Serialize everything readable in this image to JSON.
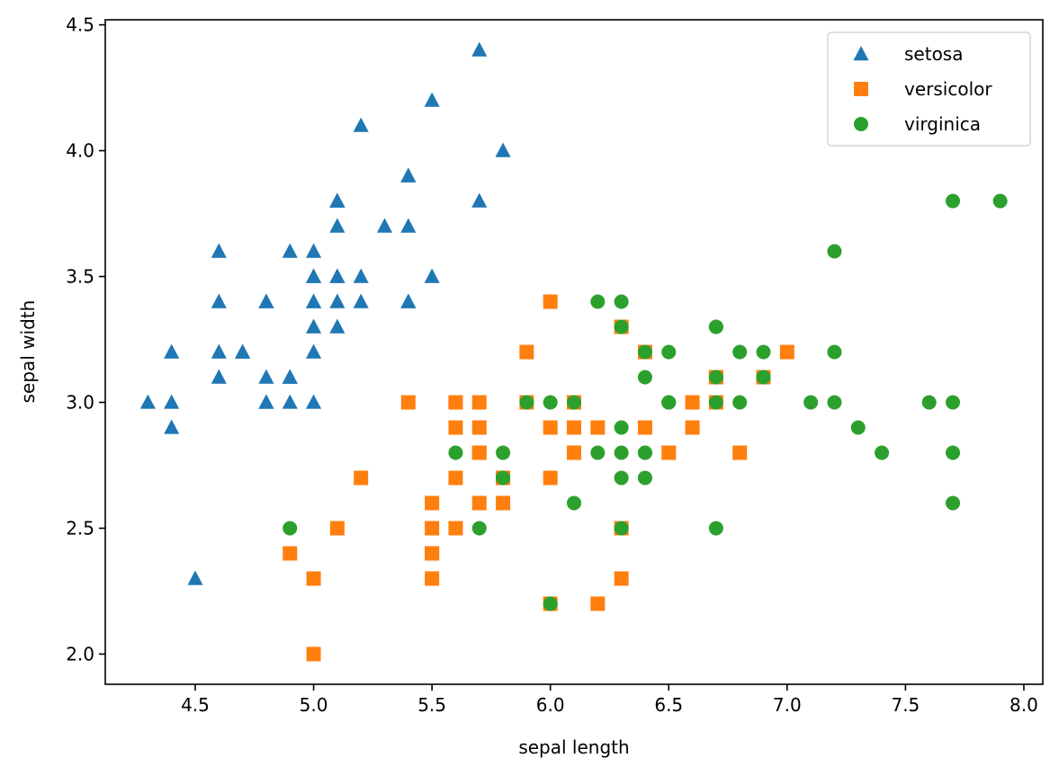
{
  "chart_data": {
    "type": "scatter",
    "title": "",
    "xlabel": "sepal length",
    "ylabel": "sepal width",
    "xlim": [
      4.12,
      8.08
    ],
    "ylim": [
      1.88,
      4.52
    ],
    "xticks": [
      "4.5",
      "5.0",
      "5.5",
      "6.0",
      "6.5",
      "7.0",
      "7.5",
      "8.0"
    ],
    "yticks": [
      "2.0",
      "2.5",
      "3.0",
      "3.5",
      "4.0",
      "4.5"
    ],
    "legend_position": "upper-right",
    "series": [
      {
        "name": "setosa",
        "marker": "triangle",
        "color": "#1f77b4",
        "points": [
          [
            5.1,
            3.5
          ],
          [
            4.9,
            3.0
          ],
          [
            4.7,
            3.2
          ],
          [
            4.6,
            3.1
          ],
          [
            5.0,
            3.6
          ],
          [
            5.4,
            3.9
          ],
          [
            4.6,
            3.4
          ],
          [
            5.0,
            3.4
          ],
          [
            4.4,
            2.9
          ],
          [
            4.9,
            3.1
          ],
          [
            5.4,
            3.7
          ],
          [
            4.8,
            3.4
          ],
          [
            4.8,
            3.0
          ],
          [
            4.3,
            3.0
          ],
          [
            5.8,
            4.0
          ],
          [
            5.7,
            4.4
          ],
          [
            5.4,
            3.9
          ],
          [
            5.1,
            3.5
          ],
          [
            5.7,
            3.8
          ],
          [
            5.1,
            3.8
          ],
          [
            5.4,
            3.4
          ],
          [
            5.1,
            3.7
          ],
          [
            4.6,
            3.6
          ],
          [
            5.1,
            3.3
          ],
          [
            4.8,
            3.4
          ],
          [
            5.0,
            3.0
          ],
          [
            5.0,
            3.4
          ],
          [
            5.2,
            3.5
          ],
          [
            5.2,
            3.4
          ],
          [
            4.7,
            3.2
          ],
          [
            4.8,
            3.1
          ],
          [
            5.4,
            3.4
          ],
          [
            5.2,
            4.1
          ],
          [
            5.5,
            4.2
          ],
          [
            4.9,
            3.1
          ],
          [
            5.0,
            3.2
          ],
          [
            5.5,
            3.5
          ],
          [
            4.9,
            3.6
          ],
          [
            4.4,
            3.0
          ],
          [
            5.1,
            3.4
          ],
          [
            5.0,
            3.5
          ],
          [
            4.5,
            2.3
          ],
          [
            4.4,
            3.2
          ],
          [
            5.0,
            3.5
          ],
          [
            5.1,
            3.8
          ],
          [
            4.8,
            3.0
          ],
          [
            5.1,
            3.8
          ],
          [
            4.6,
            3.2
          ],
          [
            5.3,
            3.7
          ],
          [
            5.0,
            3.3
          ]
        ]
      },
      {
        "name": "versicolor",
        "marker": "square",
        "color": "#ff7f0e",
        "points": [
          [
            7.0,
            3.2
          ],
          [
            6.4,
            3.2
          ],
          [
            6.9,
            3.1
          ],
          [
            5.5,
            2.3
          ],
          [
            6.5,
            2.8
          ],
          [
            5.7,
            2.8
          ],
          [
            6.3,
            3.3
          ],
          [
            4.9,
            2.4
          ],
          [
            6.6,
            2.9
          ],
          [
            5.2,
            2.7
          ],
          [
            5.0,
            2.0
          ],
          [
            5.9,
            3.0
          ],
          [
            6.0,
            2.2
          ],
          [
            6.1,
            2.9
          ],
          [
            5.6,
            2.9
          ],
          [
            6.7,
            3.1
          ],
          [
            5.6,
            3.0
          ],
          [
            5.8,
            2.7
          ],
          [
            6.2,
            2.2
          ],
          [
            5.6,
            2.5
          ],
          [
            5.9,
            3.2
          ],
          [
            6.1,
            2.8
          ],
          [
            6.3,
            2.5
          ],
          [
            6.1,
            2.8
          ],
          [
            6.4,
            2.9
          ],
          [
            6.6,
            3.0
          ],
          [
            6.8,
            2.8
          ],
          [
            6.7,
            3.0
          ],
          [
            6.0,
            2.9
          ],
          [
            5.7,
            2.6
          ],
          [
            5.5,
            2.4
          ],
          [
            5.5,
            2.4
          ],
          [
            5.8,
            2.7
          ],
          [
            6.0,
            2.7
          ],
          [
            5.4,
            3.0
          ],
          [
            6.0,
            3.4
          ],
          [
            6.7,
            3.1
          ],
          [
            6.3,
            2.3
          ],
          [
            5.6,
            3.0
          ],
          [
            5.5,
            2.5
          ],
          [
            5.5,
            2.6
          ],
          [
            6.1,
            3.0
          ],
          [
            5.8,
            2.6
          ],
          [
            5.0,
            2.3
          ],
          [
            5.6,
            2.7
          ],
          [
            5.7,
            3.0
          ],
          [
            5.7,
            2.9
          ],
          [
            6.2,
            2.9
          ],
          [
            5.1,
            2.5
          ],
          [
            5.7,
            2.8
          ]
        ]
      },
      {
        "name": "virginica",
        "marker": "circle",
        "color": "#2ca02c",
        "points": [
          [
            6.3,
            3.3
          ],
          [
            5.8,
            2.7
          ],
          [
            7.1,
            3.0
          ],
          [
            6.3,
            2.9
          ],
          [
            6.5,
            3.0
          ],
          [
            7.6,
            3.0
          ],
          [
            4.9,
            2.5
          ],
          [
            7.3,
            2.9
          ],
          [
            6.7,
            2.5
          ],
          [
            7.2,
            3.6
          ],
          [
            6.5,
            3.2
          ],
          [
            6.4,
            2.7
          ],
          [
            6.8,
            3.0
          ],
          [
            5.7,
            2.5
          ],
          [
            5.8,
            2.8
          ],
          [
            6.4,
            3.2
          ],
          [
            6.5,
            3.0
          ],
          [
            7.7,
            3.8
          ],
          [
            7.7,
            2.6
          ],
          [
            6.0,
            2.2
          ],
          [
            6.9,
            3.2
          ],
          [
            5.6,
            2.8
          ],
          [
            7.7,
            2.8
          ],
          [
            6.3,
            2.7
          ],
          [
            6.7,
            3.3
          ],
          [
            7.2,
            3.2
          ],
          [
            6.2,
            2.8
          ],
          [
            6.1,
            3.0
          ],
          [
            6.4,
            2.8
          ],
          [
            7.2,
            3.0
          ],
          [
            7.4,
            2.8
          ],
          [
            7.9,
            3.8
          ],
          [
            6.4,
            2.8
          ],
          [
            6.3,
            2.8
          ],
          [
            6.1,
            2.6
          ],
          [
            7.7,
            3.0
          ],
          [
            6.3,
            3.4
          ],
          [
            6.4,
            3.1
          ],
          [
            6.0,
            3.0
          ],
          [
            6.9,
            3.1
          ],
          [
            6.7,
            3.1
          ],
          [
            6.9,
            3.1
          ],
          [
            5.8,
            2.7
          ],
          [
            6.8,
            3.2
          ],
          [
            6.7,
            3.3
          ],
          [
            6.7,
            3.0
          ],
          [
            6.3,
            2.5
          ],
          [
            6.5,
            3.0
          ],
          [
            6.2,
            3.4
          ],
          [
            5.9,
            3.0
          ]
        ]
      }
    ]
  }
}
